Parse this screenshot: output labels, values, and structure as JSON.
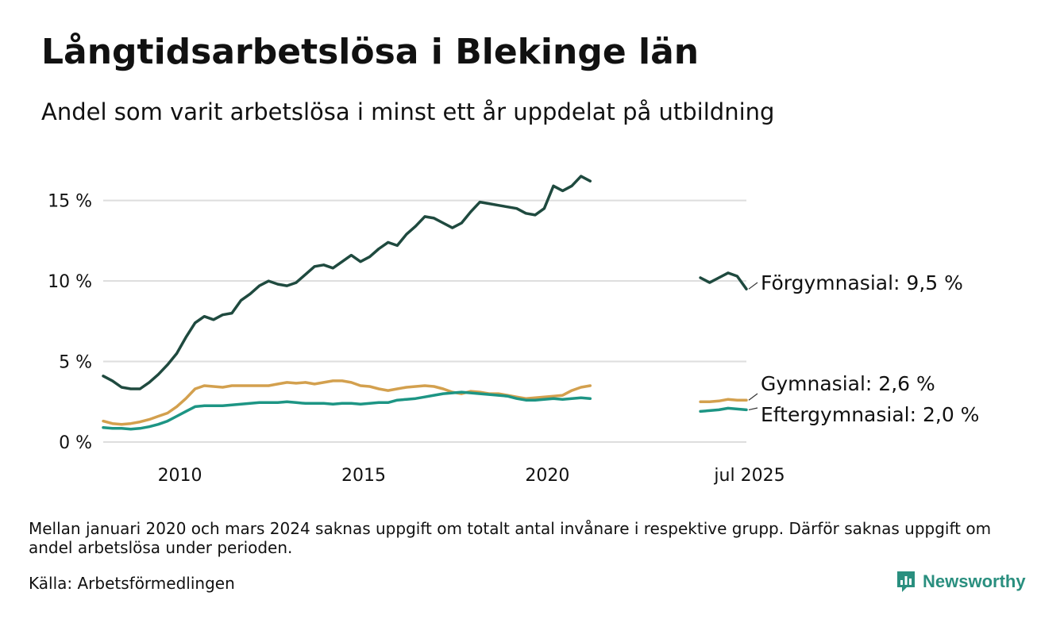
{
  "header": {
    "title": "Långtidsarbetslösa i Blekinge län",
    "subtitle": "Andel som varit arbetslösa i minst ett år uppdelat på utbildning"
  },
  "footer": {
    "note": "Mellan januari 2020 och mars 2024 saknas uppgift om totalt antal invånare i respektive grupp. Därför saknas uppgift om andel arbetslösa under perioden.",
    "source": "Källa: Arbetsförmedlingen",
    "brand": "Newsworthy",
    "brand_color": "#2a8f7f"
  },
  "chart_data": {
    "type": "line",
    "title": "Långtidsarbetslösa i Blekinge län",
    "subtitle": "Andel som varit arbetslösa i minst ett år uppdelat på utbildning",
    "xlabel": "",
    "ylabel": "",
    "x_range": [
      2008.0,
      2025.5
    ],
    "ylim": [
      0,
      17
    ],
    "grid": true,
    "legend": "direct labels at line ends (right)",
    "y_ticks": [
      {
        "value": 0,
        "label": "0 %"
      },
      {
        "value": 5,
        "label": "5 %"
      },
      {
        "value": 10,
        "label": "10 %"
      },
      {
        "value": 15,
        "label": "15 %"
      }
    ],
    "x_ticks": [
      {
        "value": 2010,
        "label": "2010"
      },
      {
        "value": 2015,
        "label": "2015"
      },
      {
        "value": 2020,
        "label": "2020"
      },
      {
        "value": 2025.5,
        "label": "jul 2025"
      }
    ],
    "series": [
      {
        "name": "Förgymnasial",
        "color": "#1f4a3f",
        "end_label": "Förgymnasial: 9,5 %",
        "segments": [
          [
            [
              2008.0,
              4.1
            ],
            [
              2008.25,
              3.8
            ],
            [
              2008.5,
              3.4
            ],
            [
              2008.75,
              3.3
            ],
            [
              2009.0,
              3.3
            ],
            [
              2009.25,
              3.7
            ],
            [
              2009.5,
              4.2
            ],
            [
              2009.75,
              4.8
            ],
            [
              2010.0,
              5.5
            ],
            [
              2010.25,
              6.5
            ],
            [
              2010.5,
              7.4
            ],
            [
              2010.75,
              7.8
            ],
            [
              2011.0,
              7.6
            ],
            [
              2011.25,
              7.9
            ],
            [
              2011.5,
              8.0
            ],
            [
              2011.75,
              8.8
            ],
            [
              2012.0,
              9.2
            ],
            [
              2012.25,
              9.7
            ],
            [
              2012.5,
              10.0
            ],
            [
              2012.75,
              9.8
            ],
            [
              2013.0,
              9.7
            ],
            [
              2013.25,
              9.9
            ],
            [
              2013.5,
              10.4
            ],
            [
              2013.75,
              10.9
            ],
            [
              2014.0,
              11.0
            ],
            [
              2014.25,
              10.8
            ],
            [
              2014.5,
              11.2
            ],
            [
              2014.75,
              11.6
            ],
            [
              2015.0,
              11.2
            ],
            [
              2015.25,
              11.5
            ],
            [
              2015.5,
              12.0
            ],
            [
              2015.75,
              12.4
            ],
            [
              2016.0,
              12.2
            ],
            [
              2016.25,
              12.9
            ],
            [
              2016.5,
              13.4
            ],
            [
              2016.75,
              14.0
            ],
            [
              2017.0,
              13.9
            ],
            [
              2017.25,
              13.6
            ],
            [
              2017.5,
              13.3
            ],
            [
              2017.75,
              13.6
            ],
            [
              2018.0,
              14.3
            ],
            [
              2018.25,
              14.9
            ],
            [
              2018.5,
              14.8
            ],
            [
              2018.75,
              14.7
            ],
            [
              2019.0,
              14.6
            ],
            [
              2019.25,
              14.5
            ],
            [
              2019.5,
              14.2
            ],
            [
              2019.75,
              14.1
            ],
            [
              2020.0,
              14.5
            ],
            [
              2020.25,
              15.9
            ],
            [
              2020.5,
              15.6
            ],
            [
              2020.75,
              15.9
            ],
            [
              2021.0,
              16.5
            ],
            [
              2021.25,
              16.2
            ]
          ],
          [
            [
              2024.25,
              10.2
            ],
            [
              2024.5,
              9.9
            ],
            [
              2024.75,
              10.2
            ],
            [
              2025.0,
              10.5
            ],
            [
              2025.25,
              10.3
            ],
            [
              2025.5,
              9.5
            ]
          ]
        ]
      },
      {
        "name": "Gymnasial",
        "color": "#d3a04e",
        "end_label": "Gymnasial: 2,6 %",
        "segments": [
          [
            [
              2008.0,
              1.3
            ],
            [
              2008.25,
              1.15
            ],
            [
              2008.5,
              1.1
            ],
            [
              2008.75,
              1.15
            ],
            [
              2009.0,
              1.25
            ],
            [
              2009.25,
              1.4
            ],
            [
              2009.5,
              1.6
            ],
            [
              2009.75,
              1.8
            ],
            [
              2010.0,
              2.2
            ],
            [
              2010.25,
              2.7
            ],
            [
              2010.5,
              3.3
            ],
            [
              2010.75,
              3.5
            ],
            [
              2011.0,
              3.45
            ],
            [
              2011.25,
              3.4
            ],
            [
              2011.5,
              3.5
            ],
            [
              2011.75,
              3.5
            ],
            [
              2012.0,
              3.5
            ],
            [
              2012.25,
              3.5
            ],
            [
              2012.5,
              3.5
            ],
            [
              2012.75,
              3.6
            ],
            [
              2013.0,
              3.7
            ],
            [
              2013.25,
              3.65
            ],
            [
              2013.5,
              3.7
            ],
            [
              2013.75,
              3.6
            ],
            [
              2014.0,
              3.7
            ],
            [
              2014.25,
              3.8
            ],
            [
              2014.5,
              3.8
            ],
            [
              2014.75,
              3.7
            ],
            [
              2015.0,
              3.5
            ],
            [
              2015.25,
              3.45
            ],
            [
              2015.5,
              3.3
            ],
            [
              2015.75,
              3.2
            ],
            [
              2016.0,
              3.3
            ],
            [
              2016.25,
              3.4
            ],
            [
              2016.5,
              3.45
            ],
            [
              2016.75,
              3.5
            ],
            [
              2017.0,
              3.45
            ],
            [
              2017.25,
              3.3
            ],
            [
              2017.5,
              3.1
            ],
            [
              2017.75,
              3.0
            ],
            [
              2018.0,
              3.15
            ],
            [
              2018.25,
              3.1
            ],
            [
              2018.5,
              3.0
            ],
            [
              2018.75,
              3.0
            ],
            [
              2019.0,
              2.9
            ],
            [
              2019.25,
              2.8
            ],
            [
              2019.5,
              2.7
            ],
            [
              2019.75,
              2.75
            ],
            [
              2020.0,
              2.8
            ],
            [
              2020.25,
              2.85
            ],
            [
              2020.5,
              2.9
            ],
            [
              2020.75,
              3.2
            ],
            [
              2021.0,
              3.4
            ],
            [
              2021.25,
              3.5
            ]
          ],
          [
            [
              2024.25,
              2.5
            ],
            [
              2024.5,
              2.5
            ],
            [
              2024.75,
              2.55
            ],
            [
              2025.0,
              2.65
            ],
            [
              2025.25,
              2.6
            ],
            [
              2025.5,
              2.6
            ]
          ]
        ]
      },
      {
        "name": "Eftergymnasial",
        "color": "#1d9584",
        "end_label": "Eftergymnasial: 2,0 %",
        "segments": [
          [
            [
              2008.0,
              0.9
            ],
            [
              2008.25,
              0.85
            ],
            [
              2008.5,
              0.85
            ],
            [
              2008.75,
              0.8
            ],
            [
              2009.0,
              0.85
            ],
            [
              2009.25,
              0.95
            ],
            [
              2009.5,
              1.1
            ],
            [
              2009.75,
              1.3
            ],
            [
              2010.0,
              1.6
            ],
            [
              2010.25,
              1.9
            ],
            [
              2010.5,
              2.2
            ],
            [
              2010.75,
              2.25
            ],
            [
              2011.0,
              2.25
            ],
            [
              2011.25,
              2.25
            ],
            [
              2011.5,
              2.3
            ],
            [
              2011.75,
              2.35
            ],
            [
              2012.0,
              2.4
            ],
            [
              2012.25,
              2.45
            ],
            [
              2012.5,
              2.45
            ],
            [
              2012.75,
              2.45
            ],
            [
              2013.0,
              2.5
            ],
            [
              2013.25,
              2.45
            ],
            [
              2013.5,
              2.4
            ],
            [
              2013.75,
              2.4
            ],
            [
              2014.0,
              2.4
            ],
            [
              2014.25,
              2.35
            ],
            [
              2014.5,
              2.4
            ],
            [
              2014.75,
              2.4
            ],
            [
              2015.0,
              2.35
            ],
            [
              2015.25,
              2.4
            ],
            [
              2015.5,
              2.45
            ],
            [
              2015.75,
              2.45
            ],
            [
              2016.0,
              2.6
            ],
            [
              2016.25,
              2.65
            ],
            [
              2016.5,
              2.7
            ],
            [
              2016.75,
              2.8
            ],
            [
              2017.0,
              2.9
            ],
            [
              2017.25,
              3.0
            ],
            [
              2017.5,
              3.05
            ],
            [
              2017.75,
              3.1
            ],
            [
              2018.0,
              3.05
            ],
            [
              2018.25,
              3.0
            ],
            [
              2018.5,
              2.95
            ],
            [
              2018.75,
              2.9
            ],
            [
              2019.0,
              2.85
            ],
            [
              2019.25,
              2.7
            ],
            [
              2019.5,
              2.6
            ],
            [
              2019.75,
              2.6
            ],
            [
              2020.0,
              2.65
            ],
            [
              2020.25,
              2.7
            ],
            [
              2020.5,
              2.65
            ],
            [
              2020.75,
              2.7
            ],
            [
              2021.0,
              2.75
            ],
            [
              2021.25,
              2.7
            ]
          ],
          [
            [
              2024.25,
              1.9
            ],
            [
              2024.5,
              1.95
            ],
            [
              2024.75,
              2.0
            ],
            [
              2025.0,
              2.1
            ],
            [
              2025.25,
              2.05
            ],
            [
              2025.5,
              2.0
            ]
          ]
        ]
      }
    ]
  }
}
